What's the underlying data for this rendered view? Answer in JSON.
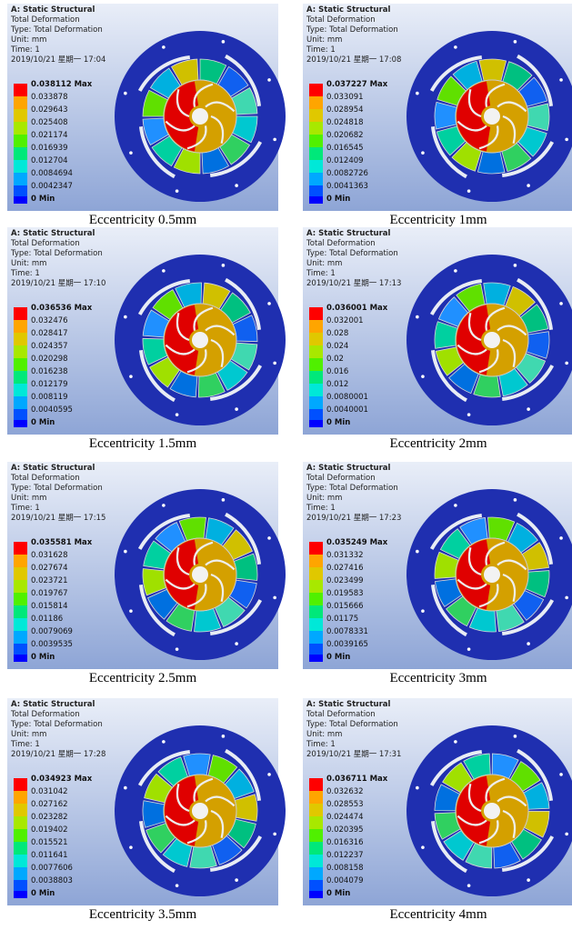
{
  "panels": [
    {
      "header": [
        "A: Static Structural",
        "Total Deformation",
        "Type: Total Deformation",
        "Unit: mm",
        "Time: 1",
        "2019/10/21 星期一 17:04"
      ],
      "legend": [
        "0.038112 Max",
        "0.033878",
        "0.029643",
        "0.025408",
        "0.021174",
        "0.016939",
        "0.012704",
        "0.0084694",
        "0.0042347",
        "0 Min"
      ],
      "caption": "Eccentricity 0.5mm"
    },
    {
      "header": [
        "A: Static Structural",
        "Total Deformation",
        "Type: Total Deformation",
        "Unit: mm",
        "Time: 1",
        "2019/10/21 星期一 17:08"
      ],
      "legend": [
        "0.037227 Max",
        "0.033091",
        "0.028954",
        "0.024818",
        "0.020682",
        "0.016545",
        "0.012409",
        "0.0082726",
        "0.0041363",
        "0 Min"
      ],
      "caption": "Eccentricity 1mm"
    },
    {
      "header": [
        "A: Static Structural",
        "Total Deformation",
        "Type: Total Deformation",
        "Unit: mm",
        "Time: 1",
        "2019/10/21 星期一 17:10"
      ],
      "legend": [
        "0.036536 Max",
        "0.032476",
        "0.028417",
        "0.024357",
        "0.020298",
        "0.016238",
        "0.012179",
        "0.008119",
        "0.0040595",
        "0 Min"
      ],
      "caption": "Eccentricity 1.5mm"
    },
    {
      "header": [
        "A: Static Structural",
        "Total Deformation",
        "Type: Total Deformation",
        "Unit: mm",
        "Time: 1",
        "2019/10/21 星期一 17:13"
      ],
      "legend": [
        "0.036001 Max",
        "0.032001",
        "0.028",
        "0.024",
        "0.02",
        "0.016",
        "0.012",
        "0.0080001",
        "0.0040001",
        "0 Min"
      ],
      "caption": "Eccentricity 2mm"
    },
    {
      "header": [
        "A: Static Structural",
        "Total Deformation",
        "Type: Total Deformation",
        "Unit: mm",
        "Time: 1",
        "2019/10/21 星期一 17:15"
      ],
      "legend": [
        "0.035581 Max",
        "0.031628",
        "0.027674",
        "0.023721",
        "0.019767",
        "0.015814",
        "0.01186",
        "0.0079069",
        "0.0039535",
        "0 Min"
      ],
      "caption": "Eccentricity 2.5mm"
    },
    {
      "header": [
        "A: Static Structural",
        "Total Deformation",
        "Type: Total Deformation",
        "Unit: mm",
        "Time: 1",
        "2019/10/21 星期一 17:23"
      ],
      "legend": [
        "0.035249 Max",
        "0.031332",
        "0.027416",
        "0.023499",
        "0.019583",
        "0.015666",
        "0.01175",
        "0.0078331",
        "0.0039165",
        "0 Min"
      ],
      "caption": "Eccentricity 3mm"
    },
    {
      "header": [
        "A: Static Structural",
        "Total Deformation",
        "Type: Total Deformation",
        "Unit: mm",
        "Time: 1",
        "2019/10/21 星期一 17:28"
      ],
      "legend": [
        "0.034923 Max",
        "0.031042",
        "0.027162",
        "0.023282",
        "0.019402",
        "0.015521",
        "0.011641",
        "0.0077606",
        "0.0038803",
        "0 Min"
      ],
      "caption": "Eccentricity 3.5mm"
    },
    {
      "header": [
        "A: Static Structural",
        "Total Deformation",
        "Type: Total Deformation",
        "Unit: mm",
        "Time: 1",
        "2019/10/21 星期一 17:31"
      ],
      "legend": [
        "0.036711 Max",
        "0.032632",
        "0.028553",
        "0.024474",
        "0.020395",
        "0.016316",
        "0.012237",
        "0.008158",
        "0.004079",
        "0 Min"
      ],
      "caption": "Eccentricity 4mm"
    }
  ]
}
